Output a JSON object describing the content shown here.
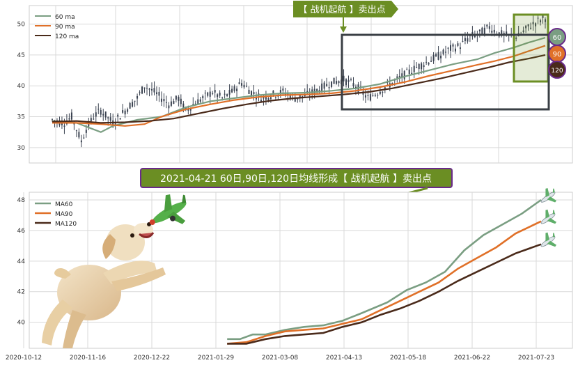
{
  "colors": {
    "ma60": "#7a9e82",
    "ma90": "#e07028",
    "ma120": "#4a2a1a",
    "candle": "#3a4250",
    "signal_green": "#6b8e23",
    "signal_border": "#3a3a3a",
    "banner_border": "#6a2a8a",
    "grid": "#d9d9d9"
  },
  "signal_box": {
    "label": "【 战机起航 】卖出点"
  },
  "banner": {
    "text": "2021-04-21 60日,90日,120日均线形成【 战机起航 】卖出点"
  },
  "badges": [
    "60",
    "90",
    "120"
  ],
  "illustration": {
    "dog": "dog-illustration",
    "plane": "toy-plane-icon",
    "small_planes": "airplane-icon"
  },
  "chart_data": [
    {
      "type": "line",
      "title": "",
      "candles_note": "daily price candles behind moving averages",
      "ylim": [
        27.5,
        53
      ],
      "yticks": [
        30,
        35,
        40,
        45,
        50
      ],
      "xlim": [
        0,
        205
      ],
      "legend": {
        "position": "top-left",
        "entries": [
          "60 ma",
          "90 ma",
          "120 ma"
        ]
      },
      "price_anchors": [
        [
          0,
          34.5
        ],
        [
          5,
          34
        ],
        [
          8,
          35
        ],
        [
          10,
          33
        ],
        [
          12,
          31
        ],
        [
          14,
          33
        ],
        [
          17,
          35
        ],
        [
          20,
          36
        ],
        [
          25,
          34
        ],
        [
          30,
          36
        ],
        [
          35,
          38
        ],
        [
          38,
          40
        ],
        [
          42,
          39
        ],
        [
          45,
          38
        ],
        [
          48,
          37
        ],
        [
          52,
          38
        ],
        [
          55,
          36
        ],
        [
          58,
          37
        ],
        [
          62,
          38
        ],
        [
          66,
          39
        ],
        [
          70,
          38
        ],
        [
          74,
          39
        ],
        [
          78,
          40.5
        ],
        [
          82,
          39
        ],
        [
          86,
          38
        ],
        [
          90,
          38.5
        ],
        [
          95,
          39
        ],
        [
          100,
          38
        ],
        [
          105,
          38.5
        ],
        [
          110,
          39.5
        ],
        [
          115,
          40.5
        ],
        [
          120,
          41
        ],
        [
          125,
          40
        ],
        [
          130,
          38
        ],
        [
          134,
          39
        ],
        [
          138,
          40
        ],
        [
          142,
          41
        ],
        [
          146,
          42
        ],
        [
          150,
          43
        ],
        [
          155,
          44
        ],
        [
          160,
          45
        ],
        [
          164,
          46
        ],
        [
          168,
          46.5
        ],
        [
          172,
          48
        ],
        [
          176,
          48.5
        ],
        [
          180,
          49.5
        ],
        [
          184,
          48.5
        ],
        [
          188,
          48
        ],
        [
          192,
          48
        ],
        [
          196,
          49.5
        ],
        [
          200,
          50.5
        ],
        [
          203,
          51
        ]
      ],
      "series": [
        {
          "name": "60 ma",
          "points": [
            [
              0,
              34.3
            ],
            [
              10,
              34
            ],
            [
              20,
              32.5
            ],
            [
              25,
              33.5
            ],
            [
              35,
              34.5
            ],
            [
              45,
              35
            ],
            [
              55,
              36.5
            ],
            [
              65,
              37.5
            ],
            [
              75,
              38
            ],
            [
              85,
              38.5
            ],
            [
              95,
              38.8
            ],
            [
              105,
              38.9
            ],
            [
              115,
              39.2
            ],
            [
              125,
              39.6
            ],
            [
              135,
              40.3
            ],
            [
              145,
              41.5
            ],
            [
              155,
              42.5
            ],
            [
              165,
              43.5
            ],
            [
              175,
              44.3
            ],
            [
              182,
              45.3
            ],
            [
              190,
              46.2
            ],
            [
              196,
              47
            ],
            [
              203,
              47.8
            ]
          ]
        },
        {
          "name": "90 ma",
          "points": [
            [
              0,
              34
            ],
            [
              10,
              34
            ],
            [
              20,
              33.8
            ],
            [
              30,
              33.5
            ],
            [
              38,
              33.8
            ],
            [
              45,
              35
            ],
            [
              55,
              36.2
            ],
            [
              65,
              37
            ],
            [
              75,
              37.7
            ],
            [
              85,
              38.2
            ],
            [
              95,
              38.5
            ],
            [
              105,
              38.6
            ],
            [
              115,
              38.8
            ],
            [
              125,
              39.2
            ],
            [
              135,
              39.8
            ],
            [
              145,
              40.6
            ],
            [
              155,
              41.6
            ],
            [
              165,
              42.5
            ],
            [
              175,
              43.4
            ],
            [
              182,
              44
            ],
            [
              190,
              44.8
            ],
            [
              196,
              45.6
            ],
            [
              203,
              46.5
            ]
          ]
        },
        {
          "name": "120 ma",
          "points": [
            [
              0,
              34.2
            ],
            [
              10,
              34.3
            ],
            [
              20,
              34
            ],
            [
              30,
              34.1
            ],
            [
              40,
              34.3
            ],
            [
              50,
              34.7
            ],
            [
              60,
              35.5
            ],
            [
              70,
              36.3
            ],
            [
              80,
              37
            ],
            [
              90,
              37.6
            ],
            [
              100,
              38
            ],
            [
              110,
              38.3
            ],
            [
              120,
              38.6
            ],
            [
              130,
              39
            ],
            [
              140,
              39.6
            ],
            [
              150,
              40.4
            ],
            [
              160,
              41.2
            ],
            [
              170,
              42.1
            ],
            [
              180,
              43
            ],
            [
              188,
              43.8
            ],
            [
              196,
              44.4
            ],
            [
              203,
              45
            ]
          ]
        }
      ]
    },
    {
      "type": "line",
      "title": "",
      "ylim": [
        38.3,
        48.5
      ],
      "yticks": [
        40,
        42,
        44,
        46,
        48
      ],
      "legend": {
        "position": "top-left",
        "entries": [
          "MA60",
          "MA90",
          "MA120"
        ]
      },
      "xticks": [
        "2020-10-12",
        "2020-11-16",
        "2020-12-22",
        "2021-01-29",
        "2021-03-08",
        "2021-04-13",
        "2021-05-18",
        "2021-06-22",
        "2021-07-23"
      ],
      "series": [
        {
          "name": "MA60",
          "points": [
            [
              3.1,
              38.9
            ],
            [
              3.3,
              38.9
            ],
            [
              3.5,
              39.2
            ],
            [
              3.7,
              39.2
            ],
            [
              4.0,
              39.5
            ],
            [
              4.3,
              39.7
            ],
            [
              4.6,
              39.8
            ],
            [
              4.9,
              40.1
            ],
            [
              5.2,
              40.6
            ],
            [
              5.6,
              41.3
            ],
            [
              5.9,
              42.1
            ],
            [
              6.2,
              42.6
            ],
            [
              6.5,
              43.3
            ],
            [
              6.8,
              44.7
            ],
            [
              7.1,
              45.7
            ],
            [
              7.4,
              46.4
            ],
            [
              7.7,
              47.1
            ],
            [
              8.0,
              48.0
            ]
          ]
        },
        {
          "name": "MA90",
          "points": [
            [
              3.1,
              38.6
            ],
            [
              3.4,
              38.7
            ],
            [
              3.7,
              39.1
            ],
            [
              4.0,
              39.4
            ],
            [
              4.3,
              39.5
            ],
            [
              4.6,
              39.6
            ],
            [
              4.9,
              39.9
            ],
            [
              5.2,
              40.2
            ],
            [
              5.5,
              40.8
            ],
            [
              5.8,
              41.4
            ],
            [
              6.1,
              42.0
            ],
            [
              6.4,
              42.6
            ],
            [
              6.7,
              43.5
            ],
            [
              7.0,
              44.2
            ],
            [
              7.3,
              44.9
            ],
            [
              7.6,
              45.8
            ],
            [
              8.0,
              46.6
            ]
          ]
        },
        {
          "name": "MA120",
          "points": [
            [
              3.1,
              38.6
            ],
            [
              3.4,
              38.6
            ],
            [
              3.7,
              38.9
            ],
            [
              4.0,
              39.1
            ],
            [
              4.3,
              39.2
            ],
            [
              4.6,
              39.3
            ],
            [
              4.9,
              39.7
            ],
            [
              5.2,
              40.0
            ],
            [
              5.5,
              40.5
            ],
            [
              5.8,
              40.9
            ],
            [
              6.1,
              41.4
            ],
            [
              6.4,
              42.0
            ],
            [
              6.7,
              42.7
            ],
            [
              7.0,
              43.3
            ],
            [
              7.3,
              43.9
            ],
            [
              7.6,
              44.5
            ],
            [
              8.0,
              45.1
            ]
          ]
        }
      ]
    }
  ]
}
